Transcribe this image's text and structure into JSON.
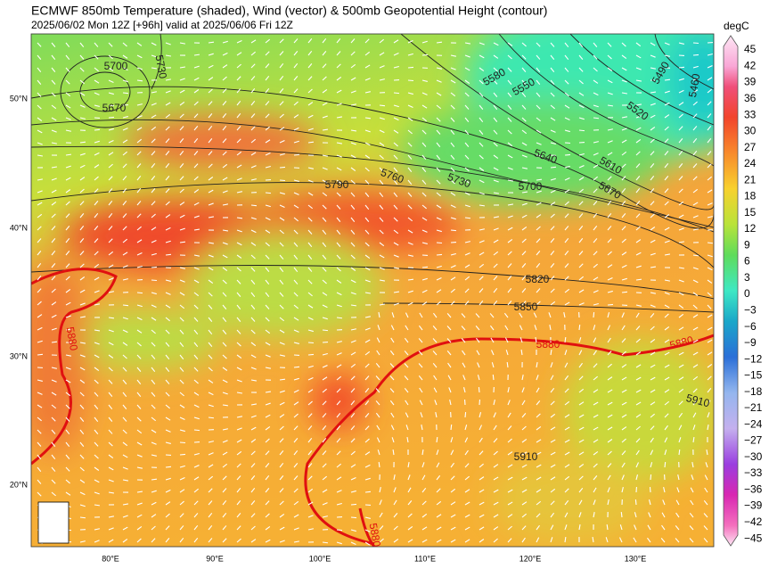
{
  "header": {
    "title": "ECMWF 850mb Temperature (shaded), Wind (vector) & 500mb Geopotential Height (contour)",
    "subtitle": "2025/06/02 Mon 12Z [+96h] valid at 2025/06/06 Fri 12Z"
  },
  "colorbar": {
    "unit": "degC",
    "labels": [
      "45",
      "42",
      "39",
      "36",
      "33",
      "30",
      "27",
      "24",
      "21",
      "18",
      "15",
      "12",
      "9",
      "6",
      "3",
      "0",
      "−3",
      "−6",
      "−9",
      "−12",
      "−15",
      "−18",
      "−21",
      "−24",
      "−27",
      "−30",
      "−33",
      "−36",
      "−39",
      "−42",
      "−45"
    ]
  },
  "lat_labels": [
    "50°N",
    "40°N",
    "30°N",
    "20°N"
  ],
  "lon_labels": [
    "80°E",
    "90°E",
    "100°E",
    "110°E",
    "120°E",
    "130°E"
  ],
  "contour_labels": [
    "5700",
    "5670",
    "5730",
    "5580",
    "5550",
    "5490",
    "5460",
    "5520",
    "5640",
    "5610",
    "5670",
    "5760",
    "5790",
    "5730",
    "5700",
    "5820",
    "5850",
    "5880",
    "5880",
    "5880",
    "5880",
    "5910",
    "5910"
  ]
}
